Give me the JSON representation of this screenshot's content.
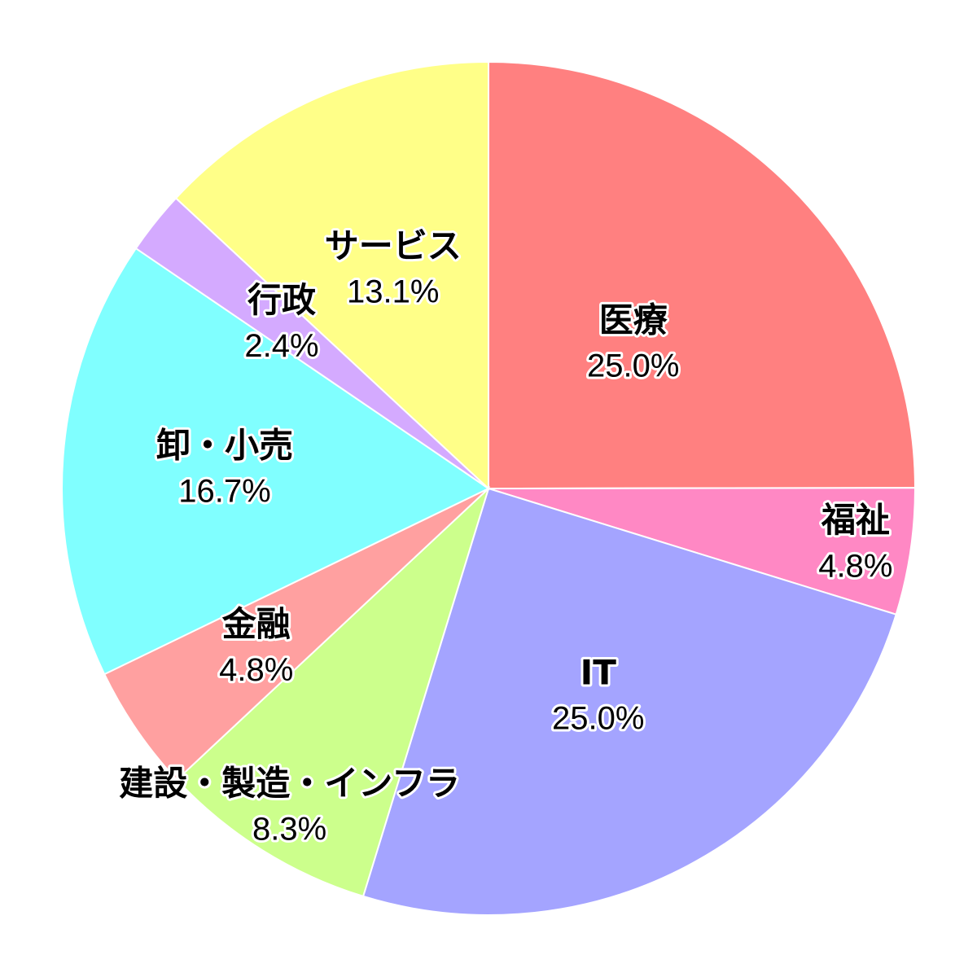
{
  "chart_data": {
    "type": "pie",
    "start_angle": "12 o'clock",
    "direction": "clockwise",
    "legend": "none",
    "slices": [
      {
        "label": "医療",
        "value": 25.0,
        "value_label": "25.0%",
        "color": "#FF8080"
      },
      {
        "label": "福祉",
        "value": 4.8,
        "value_label": "4.8%",
        "color": "#FF88C4"
      },
      {
        "label": "IT",
        "value": 25.0,
        "value_label": "25.0%",
        "color": "#A4A4FF"
      },
      {
        "label": "建設・製造・インフラ",
        "value": 8.3,
        "value_label": "8.3%",
        "color": "#CCFF8C"
      },
      {
        "label": "金融",
        "value": 4.8,
        "value_label": "4.8%",
        "color": "#FFA0A0"
      },
      {
        "label": "卸・小売",
        "value": 16.7,
        "value_label": "16.7%",
        "color": "#80FFFF"
      },
      {
        "label": "行政",
        "value": 2.4,
        "value_label": "2.4%",
        "color": "#D4AAFF"
      },
      {
        "label": "サービス",
        "value": 13.1,
        "value_label": "13.1%",
        "color": "#FFFF88"
      }
    ]
  }
}
